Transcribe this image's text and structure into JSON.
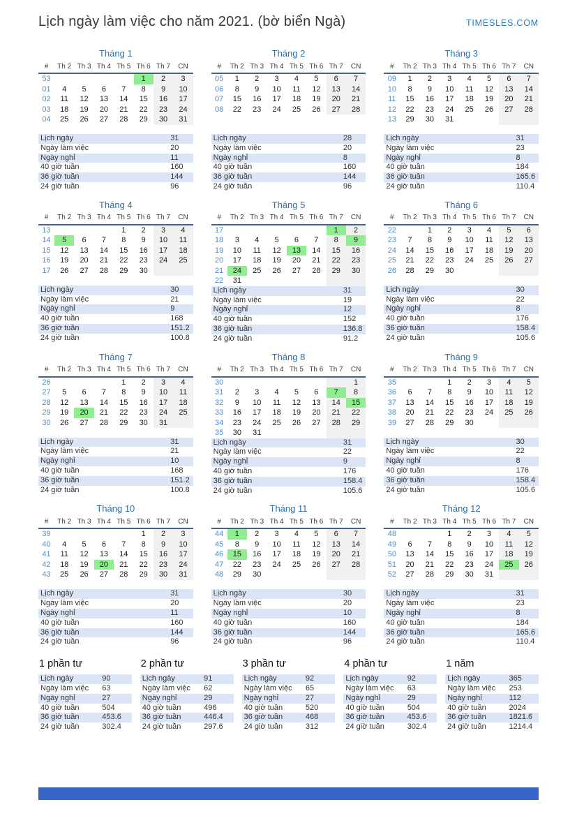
{
  "title": "Lịch ngày làm việc cho năm 2021. (bờ biển Ngà)",
  "brand": "TIMESLES.COM",
  "day_headers": [
    "#",
    "Th 2",
    "Th 3",
    "Th 4",
    "Th 5",
    "Th 6",
    "Th 7",
    "CN"
  ],
  "stats_labels": [
    "Lịch ngày",
    "Ngày làm việc",
    "Ngày nghỉ",
    "40 giờ tuần",
    "36 giờ tuần",
    "24 giờ tuần"
  ],
  "colors": {
    "accent_blue": "#2c6fae",
    "week_number_blue": "#4e8ecb",
    "holiday_green": "#90ee90",
    "weekend_gray": "#f1f1f2",
    "stats_row_blue": "#dbe5f6",
    "header_rule": "#41608a",
    "brand_blue": "#2779c4",
    "footer_blue": "#3765c8"
  },
  "months": [
    {
      "name": "Tháng 1",
      "holidays": [
        "1"
      ],
      "weeks": [
        {
          "w": "53",
          "d": [
            "",
            "",
            "",
            "",
            "1",
            "2",
            "3"
          ]
        },
        {
          "w": "01",
          "d": [
            "4",
            "5",
            "6",
            "7",
            "8",
            "9",
            "10"
          ]
        },
        {
          "w": "02",
          "d": [
            "11",
            "12",
            "13",
            "14",
            "15",
            "16",
            "17"
          ]
        },
        {
          "w": "03",
          "d": [
            "18",
            "19",
            "20",
            "21",
            "22",
            "23",
            "24"
          ]
        },
        {
          "w": "04",
          "d": [
            "25",
            "26",
            "27",
            "28",
            "29",
            "30",
            "31"
          ]
        }
      ],
      "stats": [
        "31",
        "20",
        "11",
        "160",
        "144",
        "96"
      ]
    },
    {
      "name": "Tháng 2",
      "holidays": [],
      "weeks": [
        {
          "w": "05",
          "d": [
            "1",
            "2",
            "3",
            "4",
            "5",
            "6",
            "7"
          ]
        },
        {
          "w": "06",
          "d": [
            "8",
            "9",
            "10",
            "11",
            "12",
            "13",
            "14"
          ]
        },
        {
          "w": "07",
          "d": [
            "15",
            "16",
            "17",
            "18",
            "19",
            "20",
            "21"
          ]
        },
        {
          "w": "08",
          "d": [
            "22",
            "23",
            "24",
            "25",
            "26",
            "27",
            "28"
          ]
        }
      ],
      "stats": [
        "28",
        "20",
        "8",
        "160",
        "144",
        "96"
      ]
    },
    {
      "name": "Tháng 3",
      "holidays": [],
      "weeks": [
        {
          "w": "09",
          "d": [
            "1",
            "2",
            "3",
            "4",
            "5",
            "6",
            "7"
          ]
        },
        {
          "w": "10",
          "d": [
            "8",
            "9",
            "10",
            "11",
            "12",
            "13",
            "14"
          ]
        },
        {
          "w": "11",
          "d": [
            "15",
            "16",
            "17",
            "18",
            "19",
            "20",
            "21"
          ]
        },
        {
          "w": "12",
          "d": [
            "22",
            "23",
            "24",
            "25",
            "26",
            "27",
            "28"
          ]
        },
        {
          "w": "13",
          "d": [
            "29",
            "30",
            "31",
            "",
            "",
            "",
            ""
          ]
        }
      ],
      "stats": [
        "31",
        "23",
        "8",
        "184",
        "165.6",
        "110.4"
      ]
    },
    {
      "name": "Tháng 4",
      "holidays": [
        "5"
      ],
      "weeks": [
        {
          "w": "13",
          "d": [
            "",
            "",
            "",
            "1",
            "2",
            "3",
            "4"
          ]
        },
        {
          "w": "14",
          "d": [
            "5",
            "6",
            "7",
            "8",
            "9",
            "10",
            "11"
          ]
        },
        {
          "w": "15",
          "d": [
            "12",
            "13",
            "14",
            "15",
            "16",
            "17",
            "18"
          ]
        },
        {
          "w": "16",
          "d": [
            "19",
            "20",
            "21",
            "22",
            "23",
            "24",
            "25"
          ]
        },
        {
          "w": "17",
          "d": [
            "26",
            "27",
            "28",
            "29",
            "30",
            "",
            ""
          ]
        }
      ],
      "stats": [
        "30",
        "21",
        "9",
        "168",
        "151.2",
        "100.8"
      ]
    },
    {
      "name": "Tháng 5",
      "holidays": [
        "1",
        "9",
        "13",
        "24"
      ],
      "weeks": [
        {
          "w": "17",
          "d": [
            "",
            "",
            "",
            "",
            "",
            "1",
            "2"
          ]
        },
        {
          "w": "18",
          "d": [
            "3",
            "4",
            "5",
            "6",
            "7",
            "8",
            "9"
          ]
        },
        {
          "w": "19",
          "d": [
            "10",
            "11",
            "12",
            "13",
            "14",
            "15",
            "16"
          ]
        },
        {
          "w": "20",
          "d": [
            "17",
            "18",
            "19",
            "20",
            "21",
            "22",
            "23"
          ]
        },
        {
          "w": "21",
          "d": [
            "24",
            "25",
            "26",
            "27",
            "28",
            "29",
            "30"
          ]
        },
        {
          "w": "22",
          "d": [
            "31",
            "",
            "",
            "",
            "",
            "",
            ""
          ]
        }
      ],
      "stats": [
        "31",
        "19",
        "12",
        "152",
        "136.8",
        "91.2"
      ]
    },
    {
      "name": "Tháng 6",
      "holidays": [],
      "weeks": [
        {
          "w": "22",
          "d": [
            "",
            "1",
            "2",
            "3",
            "4",
            "5",
            "6"
          ]
        },
        {
          "w": "23",
          "d": [
            "7",
            "8",
            "9",
            "10",
            "11",
            "12",
            "13"
          ]
        },
        {
          "w": "24",
          "d": [
            "14",
            "15",
            "16",
            "17",
            "18",
            "19",
            "20"
          ]
        },
        {
          "w": "25",
          "d": [
            "21",
            "22",
            "23",
            "24",
            "25",
            "26",
            "27"
          ]
        },
        {
          "w": "26",
          "d": [
            "28",
            "29",
            "30",
            "",
            "",
            "",
            ""
          ]
        }
      ],
      "stats": [
        "30",
        "22",
        "8",
        "176",
        "158.4",
        "105.6"
      ]
    },
    {
      "name": "Tháng 7",
      "holidays": [
        "20"
      ],
      "weeks": [
        {
          "w": "26",
          "d": [
            "",
            "",
            "",
            "1",
            "2",
            "3",
            "4"
          ]
        },
        {
          "w": "27",
          "d": [
            "5",
            "6",
            "7",
            "8",
            "9",
            "10",
            "11"
          ]
        },
        {
          "w": "28",
          "d": [
            "12",
            "13",
            "14",
            "15",
            "16",
            "17",
            "18"
          ]
        },
        {
          "w": "29",
          "d": [
            "19",
            "20",
            "21",
            "22",
            "23",
            "24",
            "25"
          ]
        },
        {
          "w": "30",
          "d": [
            "26",
            "27",
            "28",
            "29",
            "30",
            "31",
            ""
          ]
        }
      ],
      "stats": [
        "31",
        "21",
        "10",
        "168",
        "151.2",
        "100.8"
      ]
    },
    {
      "name": "Tháng 8",
      "holidays": [
        "7",
        "15"
      ],
      "weeks": [
        {
          "w": "30",
          "d": [
            "",
            "",
            "",
            "",
            "",
            "",
            "1"
          ]
        },
        {
          "w": "31",
          "d": [
            "2",
            "3",
            "4",
            "5",
            "6",
            "7",
            "8"
          ]
        },
        {
          "w": "32",
          "d": [
            "9",
            "10",
            "11",
            "12",
            "13",
            "14",
            "15"
          ]
        },
        {
          "w": "33",
          "d": [
            "16",
            "17",
            "18",
            "19",
            "20",
            "21",
            "22"
          ]
        },
        {
          "w": "34",
          "d": [
            "23",
            "24",
            "25",
            "26",
            "27",
            "28",
            "29"
          ]
        },
        {
          "w": "35",
          "d": [
            "30",
            "31",
            "",
            "",
            "",
            "",
            ""
          ]
        }
      ],
      "stats": [
        "31",
        "22",
        "9",
        "176",
        "158.4",
        "105.6"
      ]
    },
    {
      "name": "Tháng 9",
      "holidays": [],
      "weeks": [
        {
          "w": "35",
          "d": [
            "",
            "",
            "1",
            "2",
            "3",
            "4",
            "5"
          ]
        },
        {
          "w": "36",
          "d": [
            "6",
            "7",
            "8",
            "9",
            "10",
            "11",
            "12"
          ]
        },
        {
          "w": "37",
          "d": [
            "13",
            "14",
            "15",
            "16",
            "17",
            "18",
            "19"
          ]
        },
        {
          "w": "38",
          "d": [
            "20",
            "21",
            "22",
            "23",
            "24",
            "25",
            "26"
          ]
        },
        {
          "w": "39",
          "d": [
            "27",
            "28",
            "29",
            "30",
            "",
            "",
            ""
          ]
        }
      ],
      "stats": [
        "30",
        "22",
        "8",
        "176",
        "158.4",
        "105.6"
      ]
    },
    {
      "name": "Tháng 10",
      "holidays": [
        "20"
      ],
      "weeks": [
        {
          "w": "39",
          "d": [
            "",
            "",
            "",
            "",
            "1",
            "2",
            "3"
          ]
        },
        {
          "w": "40",
          "d": [
            "4",
            "5",
            "6",
            "7",
            "8",
            "9",
            "10"
          ]
        },
        {
          "w": "41",
          "d": [
            "11",
            "12",
            "13",
            "14",
            "15",
            "16",
            "17"
          ]
        },
        {
          "w": "42",
          "d": [
            "18",
            "19",
            "20",
            "21",
            "22",
            "23",
            "24"
          ]
        },
        {
          "w": "43",
          "d": [
            "25",
            "26",
            "27",
            "28",
            "29",
            "30",
            "31"
          ]
        }
      ],
      "stats": [
        "31",
        "20",
        "11",
        "160",
        "144",
        "96"
      ]
    },
    {
      "name": "Tháng 11",
      "holidays": [
        "1",
        "15"
      ],
      "weeks": [
        {
          "w": "44",
          "d": [
            "1",
            "2",
            "3",
            "4",
            "5",
            "6",
            "7"
          ]
        },
        {
          "w": "45",
          "d": [
            "8",
            "9",
            "10",
            "11",
            "12",
            "13",
            "14"
          ]
        },
        {
          "w": "46",
          "d": [
            "15",
            "16",
            "17",
            "18",
            "19",
            "20",
            "21"
          ]
        },
        {
          "w": "47",
          "d": [
            "22",
            "23",
            "24",
            "25",
            "26",
            "27",
            "28"
          ]
        },
        {
          "w": "48",
          "d": [
            "29",
            "30",
            "",
            "",
            "",
            "",
            ""
          ]
        }
      ],
      "stats": [
        "30",
        "20",
        "10",
        "160",
        "144",
        "96"
      ]
    },
    {
      "name": "Tháng 12",
      "holidays": [
        "25"
      ],
      "weeks": [
        {
          "w": "48",
          "d": [
            "",
            "",
            "1",
            "2",
            "3",
            "4",
            "5"
          ]
        },
        {
          "w": "49",
          "d": [
            "6",
            "7",
            "8",
            "9",
            "10",
            "11",
            "12"
          ]
        },
        {
          "w": "50",
          "d": [
            "13",
            "14",
            "15",
            "16",
            "17",
            "18",
            "19"
          ]
        },
        {
          "w": "51",
          "d": [
            "20",
            "21",
            "22",
            "23",
            "24",
            "25",
            "26"
          ]
        },
        {
          "w": "52",
          "d": [
            "27",
            "28",
            "29",
            "30",
            "31",
            "",
            ""
          ]
        }
      ],
      "stats": [
        "31",
        "23",
        "8",
        "184",
        "165.6",
        "110.4"
      ]
    }
  ],
  "summaries": [
    {
      "name": "1 phần tư",
      "stats": [
        "90",
        "63",
        "27",
        "504",
        "453.6",
        "302.4"
      ]
    },
    {
      "name": "2 phần tư",
      "stats": [
        "91",
        "62",
        "29",
        "496",
        "446.4",
        "297.6"
      ]
    },
    {
      "name": "3 phần tư",
      "stats": [
        "92",
        "65",
        "27",
        "520",
        "468",
        "312"
      ]
    },
    {
      "name": "4 phần tư",
      "stats": [
        "92",
        "63",
        "29",
        "504",
        "453.6",
        "302.4"
      ]
    },
    {
      "name": "1 năm",
      "stats": [
        "365",
        "253",
        "112",
        "2024",
        "1821.6",
        "1214.4"
      ]
    }
  ]
}
